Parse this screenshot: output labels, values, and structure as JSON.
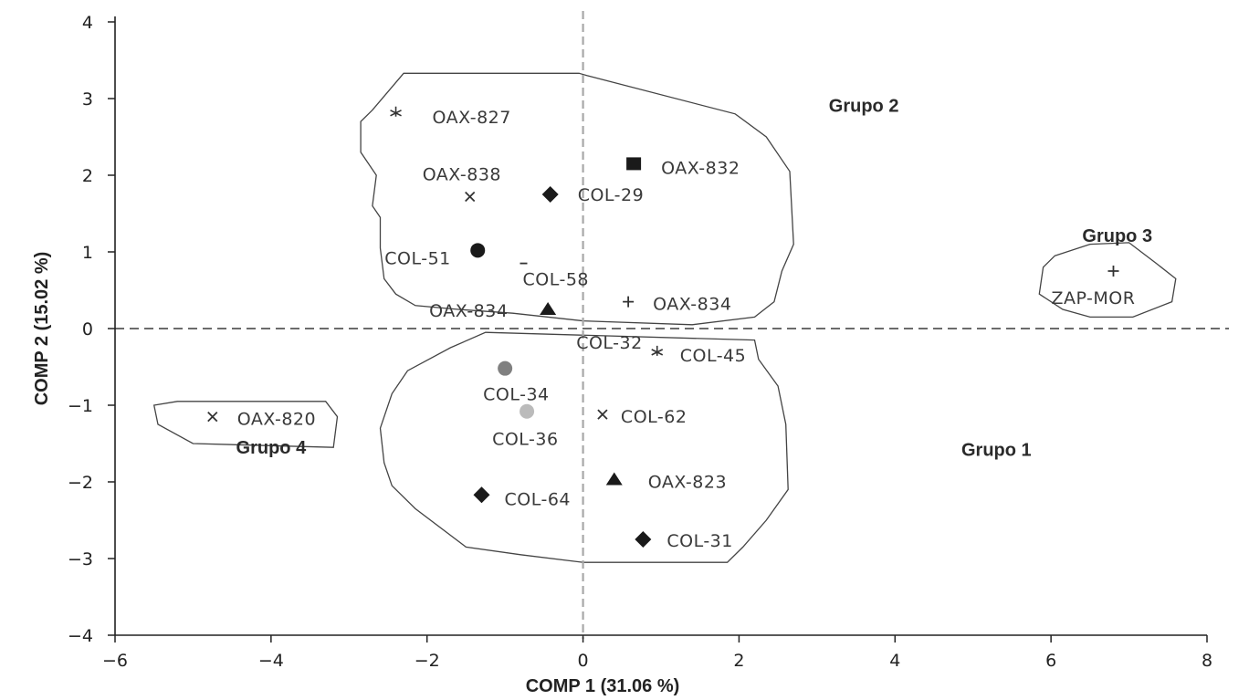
{
  "chart_data": {
    "type": "scatter",
    "xlabel": "COMP 1 (31.06 %)",
    "ylabel": "COMP 2 (15.02 %)",
    "xlim": [
      -6,
      8
    ],
    "ylim": [
      -4,
      4
    ],
    "x_ticks": [
      -6,
      -4,
      -2,
      0,
      2,
      4,
      6,
      8
    ],
    "y_ticks": [
      4,
      3,
      2,
      1,
      0,
      -1,
      -2,
      -3,
      -4
    ],
    "reference_lines": {
      "x": 0,
      "y": 0
    },
    "points": [
      {
        "label": "OAX-827",
        "x": -2.4,
        "y": 2.8,
        "marker": "star",
        "color": "#333333"
      },
      {
        "label": "OAX-832",
        "x": 0.65,
        "y": 2.15,
        "marker": "square",
        "color": "#1a1a1a"
      },
      {
        "label": "OAX-838",
        "x": -1.45,
        "y": 1.72,
        "marker": "x",
        "color": "#333333"
      },
      {
        "label": "COL-29",
        "x": -0.42,
        "y": 1.75,
        "marker": "diamond",
        "color": "#1a1a1a"
      },
      {
        "label": "COL-51",
        "x": -1.35,
        "y": 1.02,
        "marker": "circle",
        "color": "#1a1a1a"
      },
      {
        "label": "COL-58",
        "x": -0.75,
        "y": 0.85,
        "marker": "dash",
        "color": "#333333"
      },
      {
        "label": "OAX-834",
        "x": 0.58,
        "y": 0.35,
        "marker": "plus",
        "color": "#333333"
      },
      {
        "label": "OAX-834",
        "x": -0.45,
        "y": 0.25,
        "marker": "triangle",
        "color": "#1a1a1a"
      },
      {
        "label": "ZAP-MOR",
        "x": 6.8,
        "y": 0.75,
        "marker": "plus",
        "color": "#333333"
      },
      {
        "label": "COL-32",
        "x": 0.3,
        "y": -0.25,
        "marker": "none",
        "color": "#333333"
      },
      {
        "label": "COL-45",
        "x": 0.95,
        "y": -0.32,
        "marker": "star",
        "color": "#333333"
      },
      {
        "label": "COL-34",
        "x": -1.0,
        "y": -0.52,
        "marker": "circle",
        "color": "#808080"
      },
      {
        "label": "COL-36",
        "x": -0.72,
        "y": -1.08,
        "marker": "circle",
        "color": "#bbbbbb"
      },
      {
        "label": "COL-62",
        "x": 0.25,
        "y": -1.12,
        "marker": "x",
        "color": "#333333"
      },
      {
        "label": "OAX-820",
        "x": -4.75,
        "y": -1.15,
        "marker": "x",
        "color": "#333333"
      },
      {
        "label": "OAX-823",
        "x": 0.4,
        "y": -1.97,
        "marker": "triangle",
        "color": "#1a1a1a"
      },
      {
        "label": "COL-64",
        "x": -1.3,
        "y": -2.17,
        "marker": "diamond",
        "color": "#1a1a1a"
      },
      {
        "label": "COL-31",
        "x": 0.77,
        "y": -2.75,
        "marker": "diamond",
        "color": "#1a1a1a"
      }
    ],
    "groups": [
      {
        "name": "Grupo 1",
        "members": [
          "COL-32",
          "COL-45",
          "COL-34",
          "COL-36",
          "COL-62",
          "OAX-823",
          "COL-64",
          "COL-31"
        ]
      },
      {
        "name": "Grupo 2",
        "members": [
          "OAX-827",
          "OAX-832",
          "OAX-838",
          "COL-29",
          "COL-51",
          "COL-58",
          "OAX-834",
          "OAX-834"
        ]
      },
      {
        "name": "Grupo 3",
        "members": [
          "ZAP-MOR"
        ]
      },
      {
        "name": "Grupo 4",
        "members": [
          "OAX-820"
        ]
      }
    ]
  }
}
